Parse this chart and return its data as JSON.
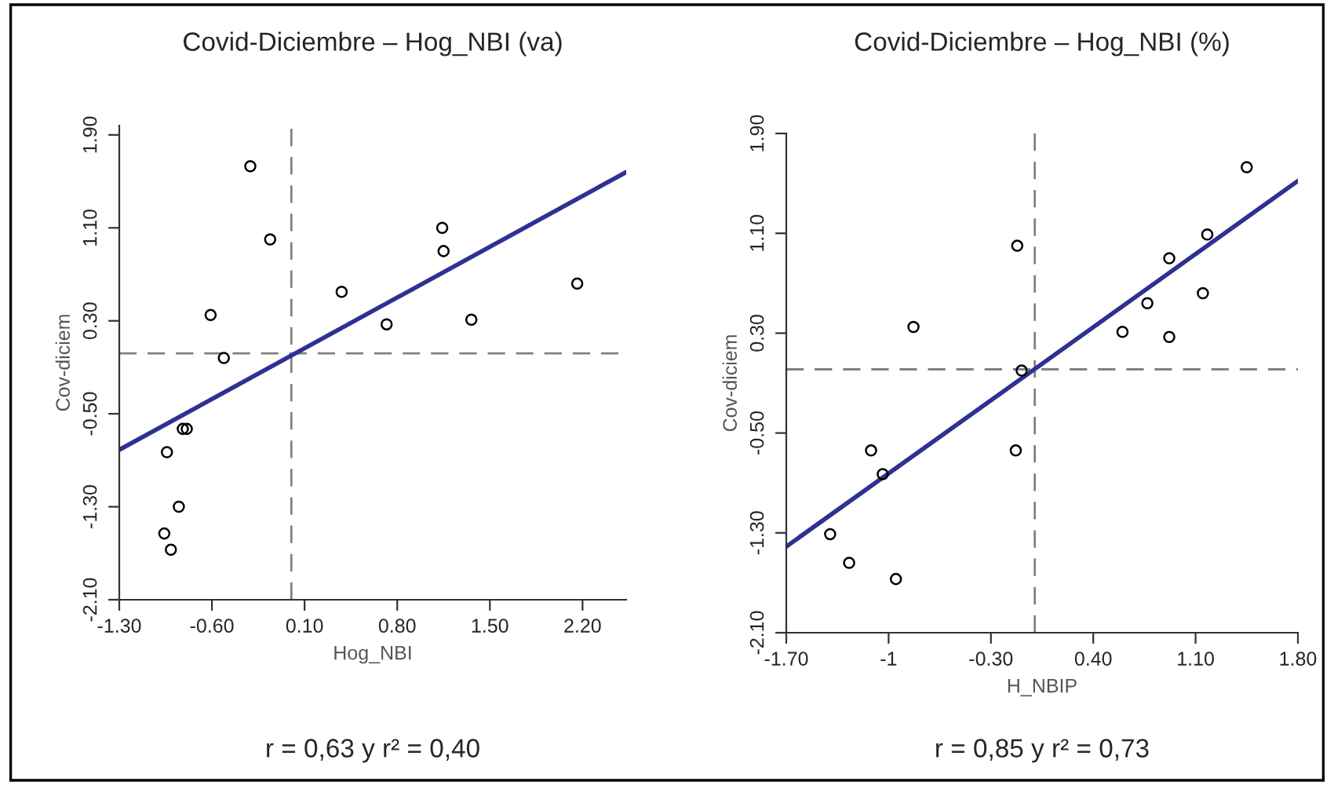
{
  "chart_data": [
    {
      "type": "scatter",
      "title": "Covid-Diciembre – Hog_NBI (va)",
      "xlabel": "Hog_NBI",
      "ylabel": "Cov-diciem",
      "annotations": [
        "r = 0,63 y r² = 0,40"
      ],
      "marker": "circle",
      "grid": false,
      "legend": false,
      "xlim": [
        -1.3,
        2.53
      ],
      "ylim": [
        -2.1,
        1.98
      ],
      "xticks": [
        {
          "value": -1.3,
          "label": "-1.30"
        },
        {
          "value": -0.6,
          "label": "-0.60"
        },
        {
          "value": 0.1,
          "label": "0.10"
        },
        {
          "value": 0.8,
          "label": "0.80"
        },
        {
          "value": 1.5,
          "label": "1.50"
        },
        {
          "value": 2.2,
          "label": "2.20"
        }
      ],
      "yticks": [
        {
          "value": -2.1,
          "label": "-2.10"
        },
        {
          "value": -1.3,
          "label": "-1.30"
        },
        {
          "value": -0.5,
          "label": "-0.50"
        },
        {
          "value": 0.3,
          "label": "0.30"
        },
        {
          "value": 1.1,
          "label": "1.10"
        },
        {
          "value": 1.9,
          "label": "1.90"
        }
      ],
      "ref_lines": [
        {
          "axis": "x",
          "value": 0.0,
          "color": "#808080",
          "line_style": "dashed"
        },
        {
          "axis": "y",
          "value": 0.02,
          "color": "#808080",
          "line_style": "dashed"
        }
      ],
      "series": [
        {
          "color": "#000000",
          "x": [
            -0.31,
            -0.16,
            -0.61,
            -0.51,
            0.38,
            0.72,
            1.14,
            1.15,
            1.36,
            2.16,
            -0.82,
            -0.79,
            -0.94,
            -0.85,
            -0.96,
            -0.91
          ],
          "values": [
            1.63,
            1.0,
            0.35,
            -0.02,
            0.55,
            0.27,
            1.1,
            0.9,
            0.31,
            0.62,
            -0.63,
            -0.63,
            -0.83,
            -1.3,
            -1.53,
            -1.67
          ]
        },
        {
          "type": "line",
          "color": "#2e3192",
          "marker": "none",
          "x": [
            -1.3,
            2.53
          ],
          "values": [
            -0.81,
            1.58
          ]
        }
      ]
    },
    {
      "type": "scatter",
      "title": "Covid-Diciembre – Hog_NBI (%)",
      "xlabel": "H_NBIP",
      "ylabel": "Cov-diciem",
      "annotations": [
        "r = 0,85 y r² = 0,73"
      ],
      "marker": "circle",
      "grid": false,
      "legend": false,
      "xlim": [
        -1.7,
        1.8
      ],
      "ylim": [
        -2.1,
        1.9
      ],
      "xticks": [
        {
          "value": -1.7,
          "label": "-1.70"
        },
        {
          "value": -1,
          "label": "-1"
        },
        {
          "value": -0.3,
          "label": "-0.30"
        },
        {
          "value": 0.4,
          "label": "0.40"
        },
        {
          "value": 1.1,
          "label": "1.10"
        },
        {
          "value": 1.8,
          "label": "1.80"
        }
      ],
      "yticks": [
        {
          "value": -2.1,
          "label": "-2.10"
        },
        {
          "value": -1.3,
          "label": "-1.30"
        },
        {
          "value": -0.5,
          "label": "-0.50"
        },
        {
          "value": 0.3,
          "label": "0.30"
        },
        {
          "value": 1.1,
          "label": "1.10"
        },
        {
          "value": 1.9,
          "label": "1.90"
        }
      ],
      "ref_lines": [
        {
          "axis": "x",
          "value": 0.0,
          "color": "#808080",
          "line_style": "dashed"
        },
        {
          "axis": "y",
          "value": 0.01,
          "color": "#808080",
          "line_style": "dashed"
        }
      ],
      "series": [
        {
          "color": "#000000",
          "x": [
            1.45,
            1.18,
            -0.12,
            0.92,
            1.15,
            0.77,
            0.6,
            0.92,
            -0.83,
            -0.09,
            -1.12,
            -0.13,
            -1.04,
            -1.4,
            -1.27,
            -0.95
          ],
          "values": [
            1.63,
            1.09,
            1.0,
            0.9,
            0.62,
            0.54,
            0.31,
            0.27,
            0.35,
            0.0,
            -0.64,
            -0.64,
            -0.83,
            -1.31,
            -1.54,
            -1.67
          ]
        },
        {
          "type": "line",
          "color": "#2e3192",
          "marker": "none",
          "x": [
            -1.7,
            1.8
          ],
          "values": [
            -1.41,
            1.52
          ]
        }
      ]
    }
  ]
}
